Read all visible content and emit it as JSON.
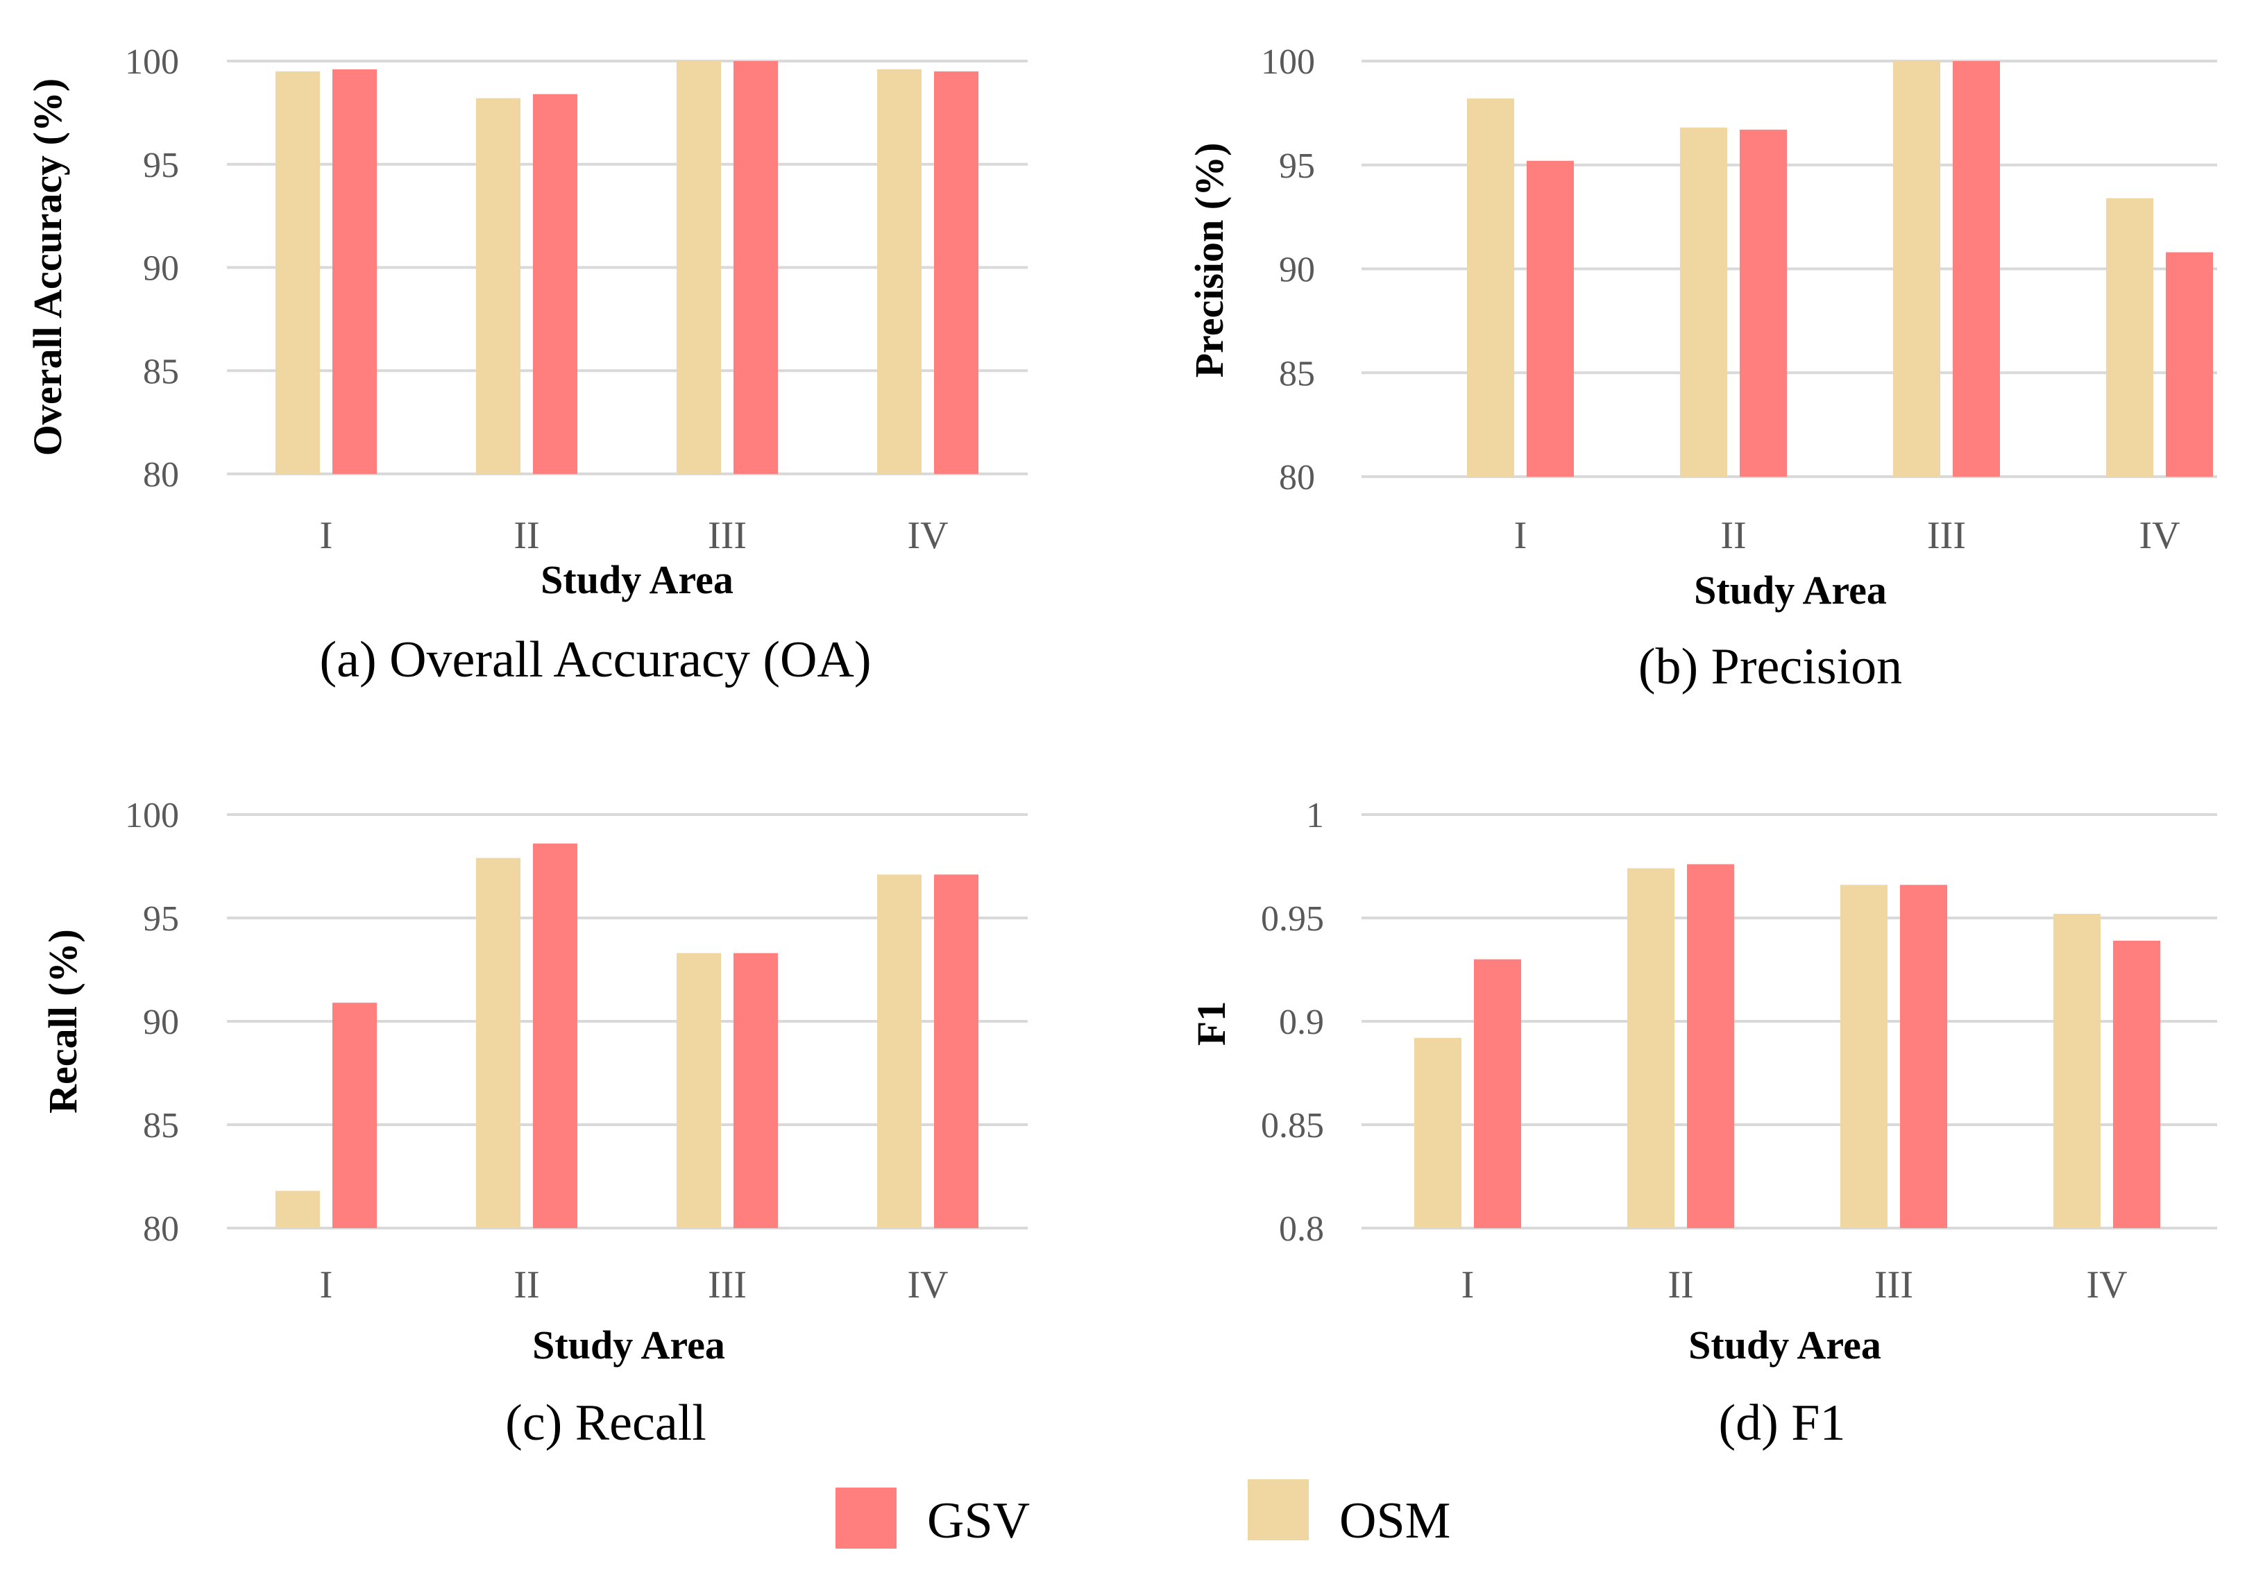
{
  "legend": [
    {
      "name": "GSV",
      "color": "#ff7f7f"
    },
    {
      "name": "OSM",
      "color": "#f0d6a1"
    }
  ],
  "chart_data": [
    {
      "type": "bar",
      "panel": "a",
      "caption": "(a) Overall Accuracy (OA)",
      "xlabel": "Study Area",
      "ylabel": "Overall Accuracy (%)",
      "categories": [
        "I",
        "II",
        "III",
        "IV"
      ],
      "ylim": [
        80,
        100
      ],
      "yticks": [
        "80",
        "85",
        "90",
        "95",
        "100"
      ],
      "series": [
        {
          "name": "OSM",
          "values": [
            99.5,
            98.2,
            100,
            99.6
          ]
        },
        {
          "name": "GSV",
          "values": [
            99.6,
            98.4,
            100,
            99.5
          ]
        }
      ]
    },
    {
      "type": "bar",
      "panel": "b",
      "caption": "(b) Precision",
      "xlabel": "Study Area",
      "ylabel": "Precision (%)",
      "categories": [
        "I",
        "II",
        "III",
        "IV"
      ],
      "ylim": [
        80,
        100
      ],
      "yticks": [
        "80",
        "85",
        "90",
        "95",
        "100"
      ],
      "series": [
        {
          "name": "OSM",
          "values": [
            98.2,
            96.8,
            100,
            93.4
          ]
        },
        {
          "name": "GSV",
          "values": [
            95.2,
            96.7,
            100,
            90.8
          ]
        }
      ]
    },
    {
      "type": "bar",
      "panel": "c",
      "caption": "(c) Recall",
      "xlabel": "Study Area",
      "ylabel": "Recall (%)",
      "categories": [
        "I",
        "II",
        "III",
        "IV"
      ],
      "ylim": [
        80,
        100
      ],
      "yticks": [
        "80",
        "85",
        "90",
        "95",
        "100"
      ],
      "series": [
        {
          "name": "OSM",
          "values": [
            81.8,
            97.9,
            93.3,
            97.1
          ]
        },
        {
          "name": "GSV",
          "values": [
            90.9,
            98.6,
            93.3,
            97.1
          ]
        }
      ]
    },
    {
      "type": "bar",
      "panel": "d",
      "caption": "(d) F1",
      "xlabel": "Study Area",
      "ylabel": "F1",
      "categories": [
        "I",
        "II",
        "III",
        "IV"
      ],
      "ylim": [
        0.8,
        1
      ],
      "yticks": [
        "0.8",
        "0.85",
        "0.9",
        "0.95",
        "1"
      ],
      "series": [
        {
          "name": "OSM",
          "values": [
            0.892,
            0.974,
            0.966,
            0.952
          ]
        },
        {
          "name": "GSV",
          "values": [
            0.93,
            0.976,
            0.966,
            0.939
          ]
        }
      ]
    }
  ]
}
